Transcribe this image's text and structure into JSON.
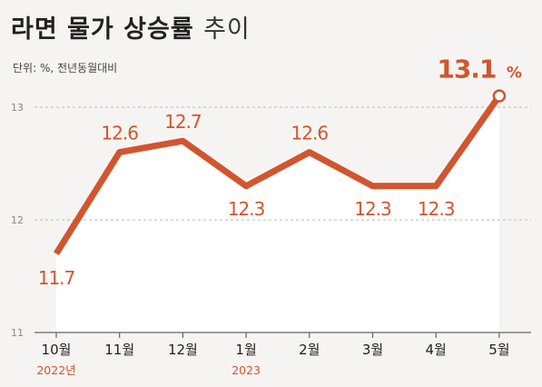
{
  "title": {
    "main": "라면 물가 상승률",
    "suffix": "추이"
  },
  "unit_note": "단위: %, 전년동월대비",
  "colors": {
    "line": "#d2552e",
    "axis": "#666666",
    "grid": "#b9b9b9",
    "area": "#ffffff"
  },
  "chart_data": {
    "type": "line",
    "title": "라면 물가 상승률 추이",
    "subtitle": "단위: %, 전년동월대비",
    "categories": [
      "10월",
      "11월",
      "12월",
      "1월",
      "2월",
      "3월",
      "4월",
      "5월"
    ],
    "year_labels": [
      "2022년",
      "",
      "",
      "2023",
      "",
      "",
      "",
      ""
    ],
    "values": [
      11.7,
      12.6,
      12.7,
      12.3,
      12.6,
      12.3,
      12.3,
      13.1
    ],
    "data_labels": [
      "11.7",
      "12.6",
      "12.7",
      "12.3",
      "12.6",
      "12.3",
      "12.3",
      "13.1"
    ],
    "last_label_suffix": "%",
    "ylim": [
      11,
      13
    ],
    "yticks": [
      11,
      12,
      13
    ],
    "ytick_labels": [
      "11",
      "12",
      "13"
    ],
    "grid": true
  }
}
